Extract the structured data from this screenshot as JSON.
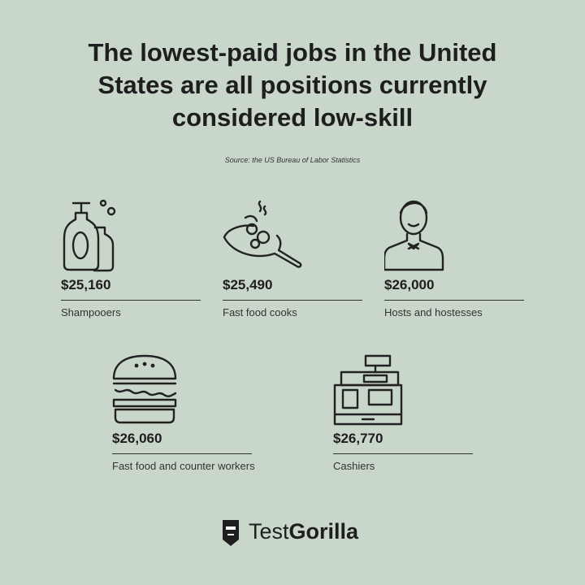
{
  "header": {
    "title_lines": [
      "The lowest-paid jobs in the United",
      "States are all positions currently",
      "considered low-skill"
    ],
    "source": "Source: the US Bureau of Labor Statistics"
  },
  "items": [
    {
      "salary": "$25,160",
      "job": "Shampooers"
    },
    {
      "salary": "$25,490",
      "job": "Fast food cooks"
    },
    {
      "salary": "$26,000",
      "job": "Hosts and hostesses"
    },
    {
      "salary": "$26,060",
      "job": "Fast food and counter workers"
    },
    {
      "salary": "$26,770",
      "job": "Cashiers"
    }
  ],
  "brand": {
    "light": "Test",
    "bold": "Gorilla"
  }
}
